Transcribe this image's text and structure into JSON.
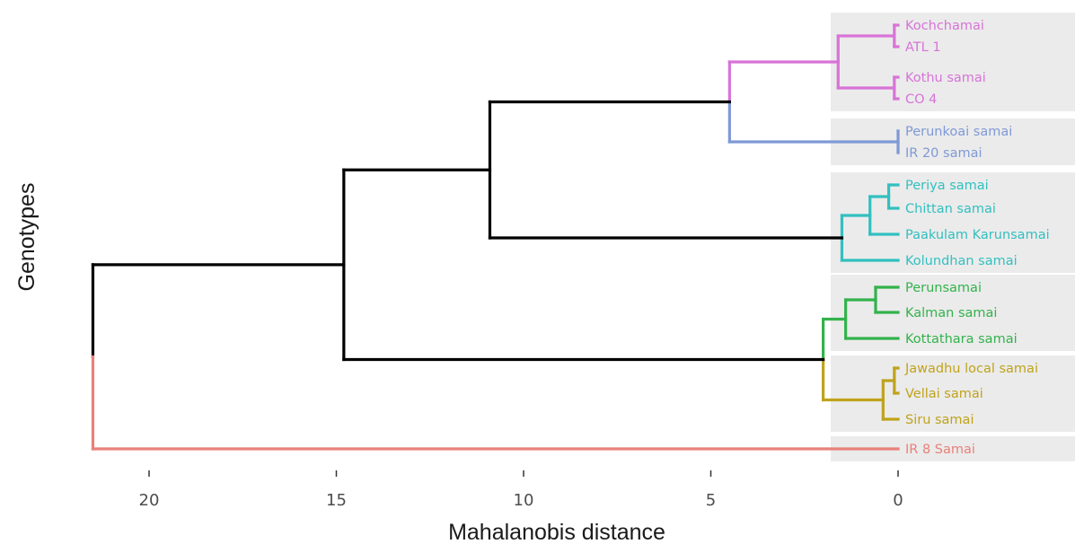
{
  "chart_data": {
    "type": "dendrogram",
    "title": "",
    "xlabel": "Mahalanobis distance",
    "ylabel": "Genotypes",
    "x_reversed": true,
    "xlim": [
      21.5,
      0
    ],
    "xticks": [
      20,
      15,
      10,
      5,
      0
    ],
    "xtick_labels": [
      "20",
      "15",
      "10",
      "5",
      "0"
    ],
    "grid": false,
    "leaves": [
      "Kochchamai",
      "ATL 1",
      "Kothu samai",
      "CO 4",
      "Perunkoai samai",
      "IR 20 samai",
      "Periya samai",
      "Chittan samai",
      "Paakulam Karunsamai",
      "Kolundhan samai",
      "Perunsamai",
      "Kalman samai",
      "Kottathara samai",
      "Jawadhu local samai",
      "Vellai samai",
      "Siru samai",
      "IR 8 Samai"
    ],
    "clusters": [
      {
        "color": "#d873d8",
        "leaves": [
          0,
          1,
          2,
          3
        ]
      },
      {
        "color": "#7f99d6",
        "leaves": [
          4,
          5
        ]
      },
      {
        "color": "#33bfbf",
        "leaves": [
          6,
          7,
          8,
          9
        ]
      },
      {
        "color": "#33b24c",
        "leaves": [
          10,
          11,
          12
        ]
      },
      {
        "color": "#bfa31c",
        "leaves": [
          13,
          14,
          15
        ]
      },
      {
        "color": "#e8817a",
        "leaves": [
          16
        ]
      }
    ],
    "branch_color": "#000000",
    "merges": [
      {
        "a": {
          "leaf": 0
        },
        "b": {
          "leaf": 1
        },
        "height": 0.1,
        "color": "#d873d8"
      },
      {
        "a": {
          "leaf": 2
        },
        "b": {
          "leaf": 3
        },
        "height": 0.1,
        "color": "#d873d8"
      },
      {
        "a": {
          "node": 0
        },
        "b": {
          "node": 1
        },
        "height": 1.6,
        "color": "#d873d8"
      },
      {
        "a": {
          "leaf": 4
        },
        "b": {
          "leaf": 5
        },
        "height": 0.0,
        "color": "#7f99d6"
      },
      {
        "a": {
          "node": 2
        },
        "b": {
          "node": 3
        },
        "height": 4.5,
        "split": true
      },
      {
        "a": {
          "leaf": 6
        },
        "b": {
          "leaf": 7
        },
        "height": 0.25,
        "color": "#33bfbf"
      },
      {
        "a": {
          "node": 5
        },
        "b": {
          "leaf": 8
        },
        "height": 0.75,
        "color": "#33bfbf"
      },
      {
        "a": {
          "node": 6
        },
        "b": {
          "leaf": 9
        },
        "height": 1.5,
        "color": "#33bfbf"
      },
      {
        "a": {
          "node": 4
        },
        "b": {
          "node": 7
        },
        "height": 10.9,
        "color": "#000000"
      },
      {
        "a": {
          "leaf": 10
        },
        "b": {
          "leaf": 11
        },
        "height": 0.6,
        "color": "#33b24c"
      },
      {
        "a": {
          "node": 9
        },
        "b": {
          "leaf": 12
        },
        "height": 1.4,
        "color": "#33b24c"
      },
      {
        "a": {
          "leaf": 13
        },
        "b": {
          "leaf": 14
        },
        "height": 0.1,
        "color": "#bfa31c"
      },
      {
        "a": {
          "node": 11
        },
        "b": {
          "leaf": 15
        },
        "height": 0.4,
        "color": "#bfa31c"
      },
      {
        "a": {
          "node": 10
        },
        "b": {
          "node": 12
        },
        "height": 2.0,
        "split": true
      },
      {
        "a": {
          "node": 8
        },
        "b": {
          "node": 13
        },
        "height": 14.8,
        "color": "#000000"
      },
      {
        "a": {
          "node": 14
        },
        "b": {
          "leaf": 16
        },
        "height": 21.5,
        "split": true
      }
    ]
  }
}
